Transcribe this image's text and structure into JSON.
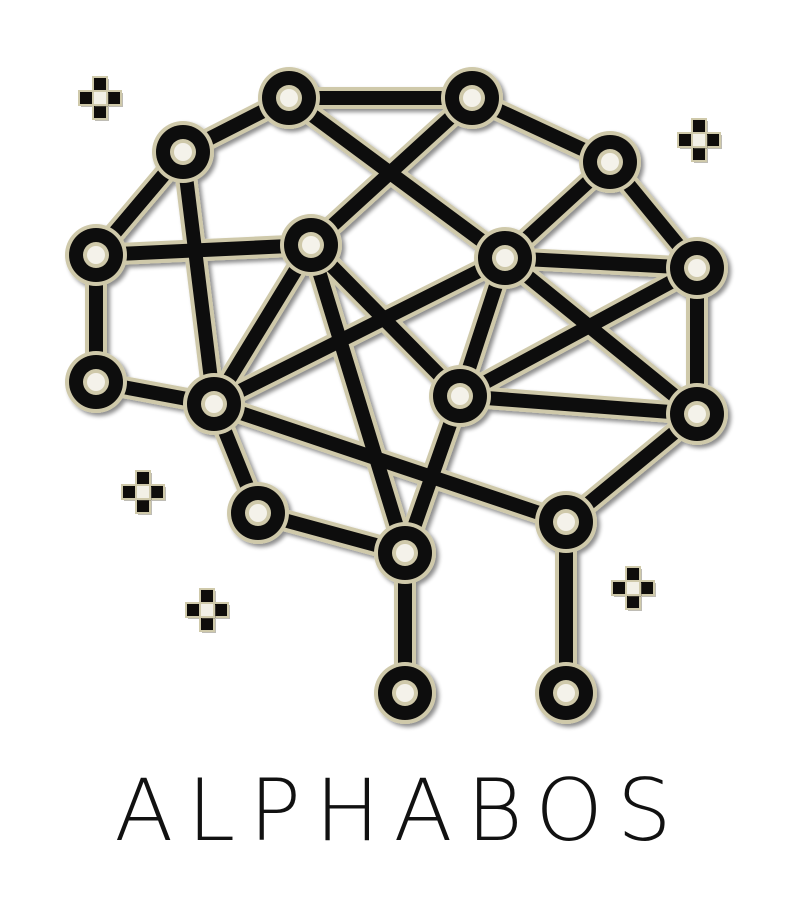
{
  "brand": {
    "name": "ALPHABOS"
  },
  "colors": {
    "ink": "#0f0d0b",
    "rim": "#d6d1b3",
    "rim_dark": "#a9a38a",
    "shadow": "#6f6a5a",
    "background": "#ffffff"
  },
  "icons": {
    "logo": "brain-network-icon",
    "decorations": "pixel-sparkle-icon"
  }
}
